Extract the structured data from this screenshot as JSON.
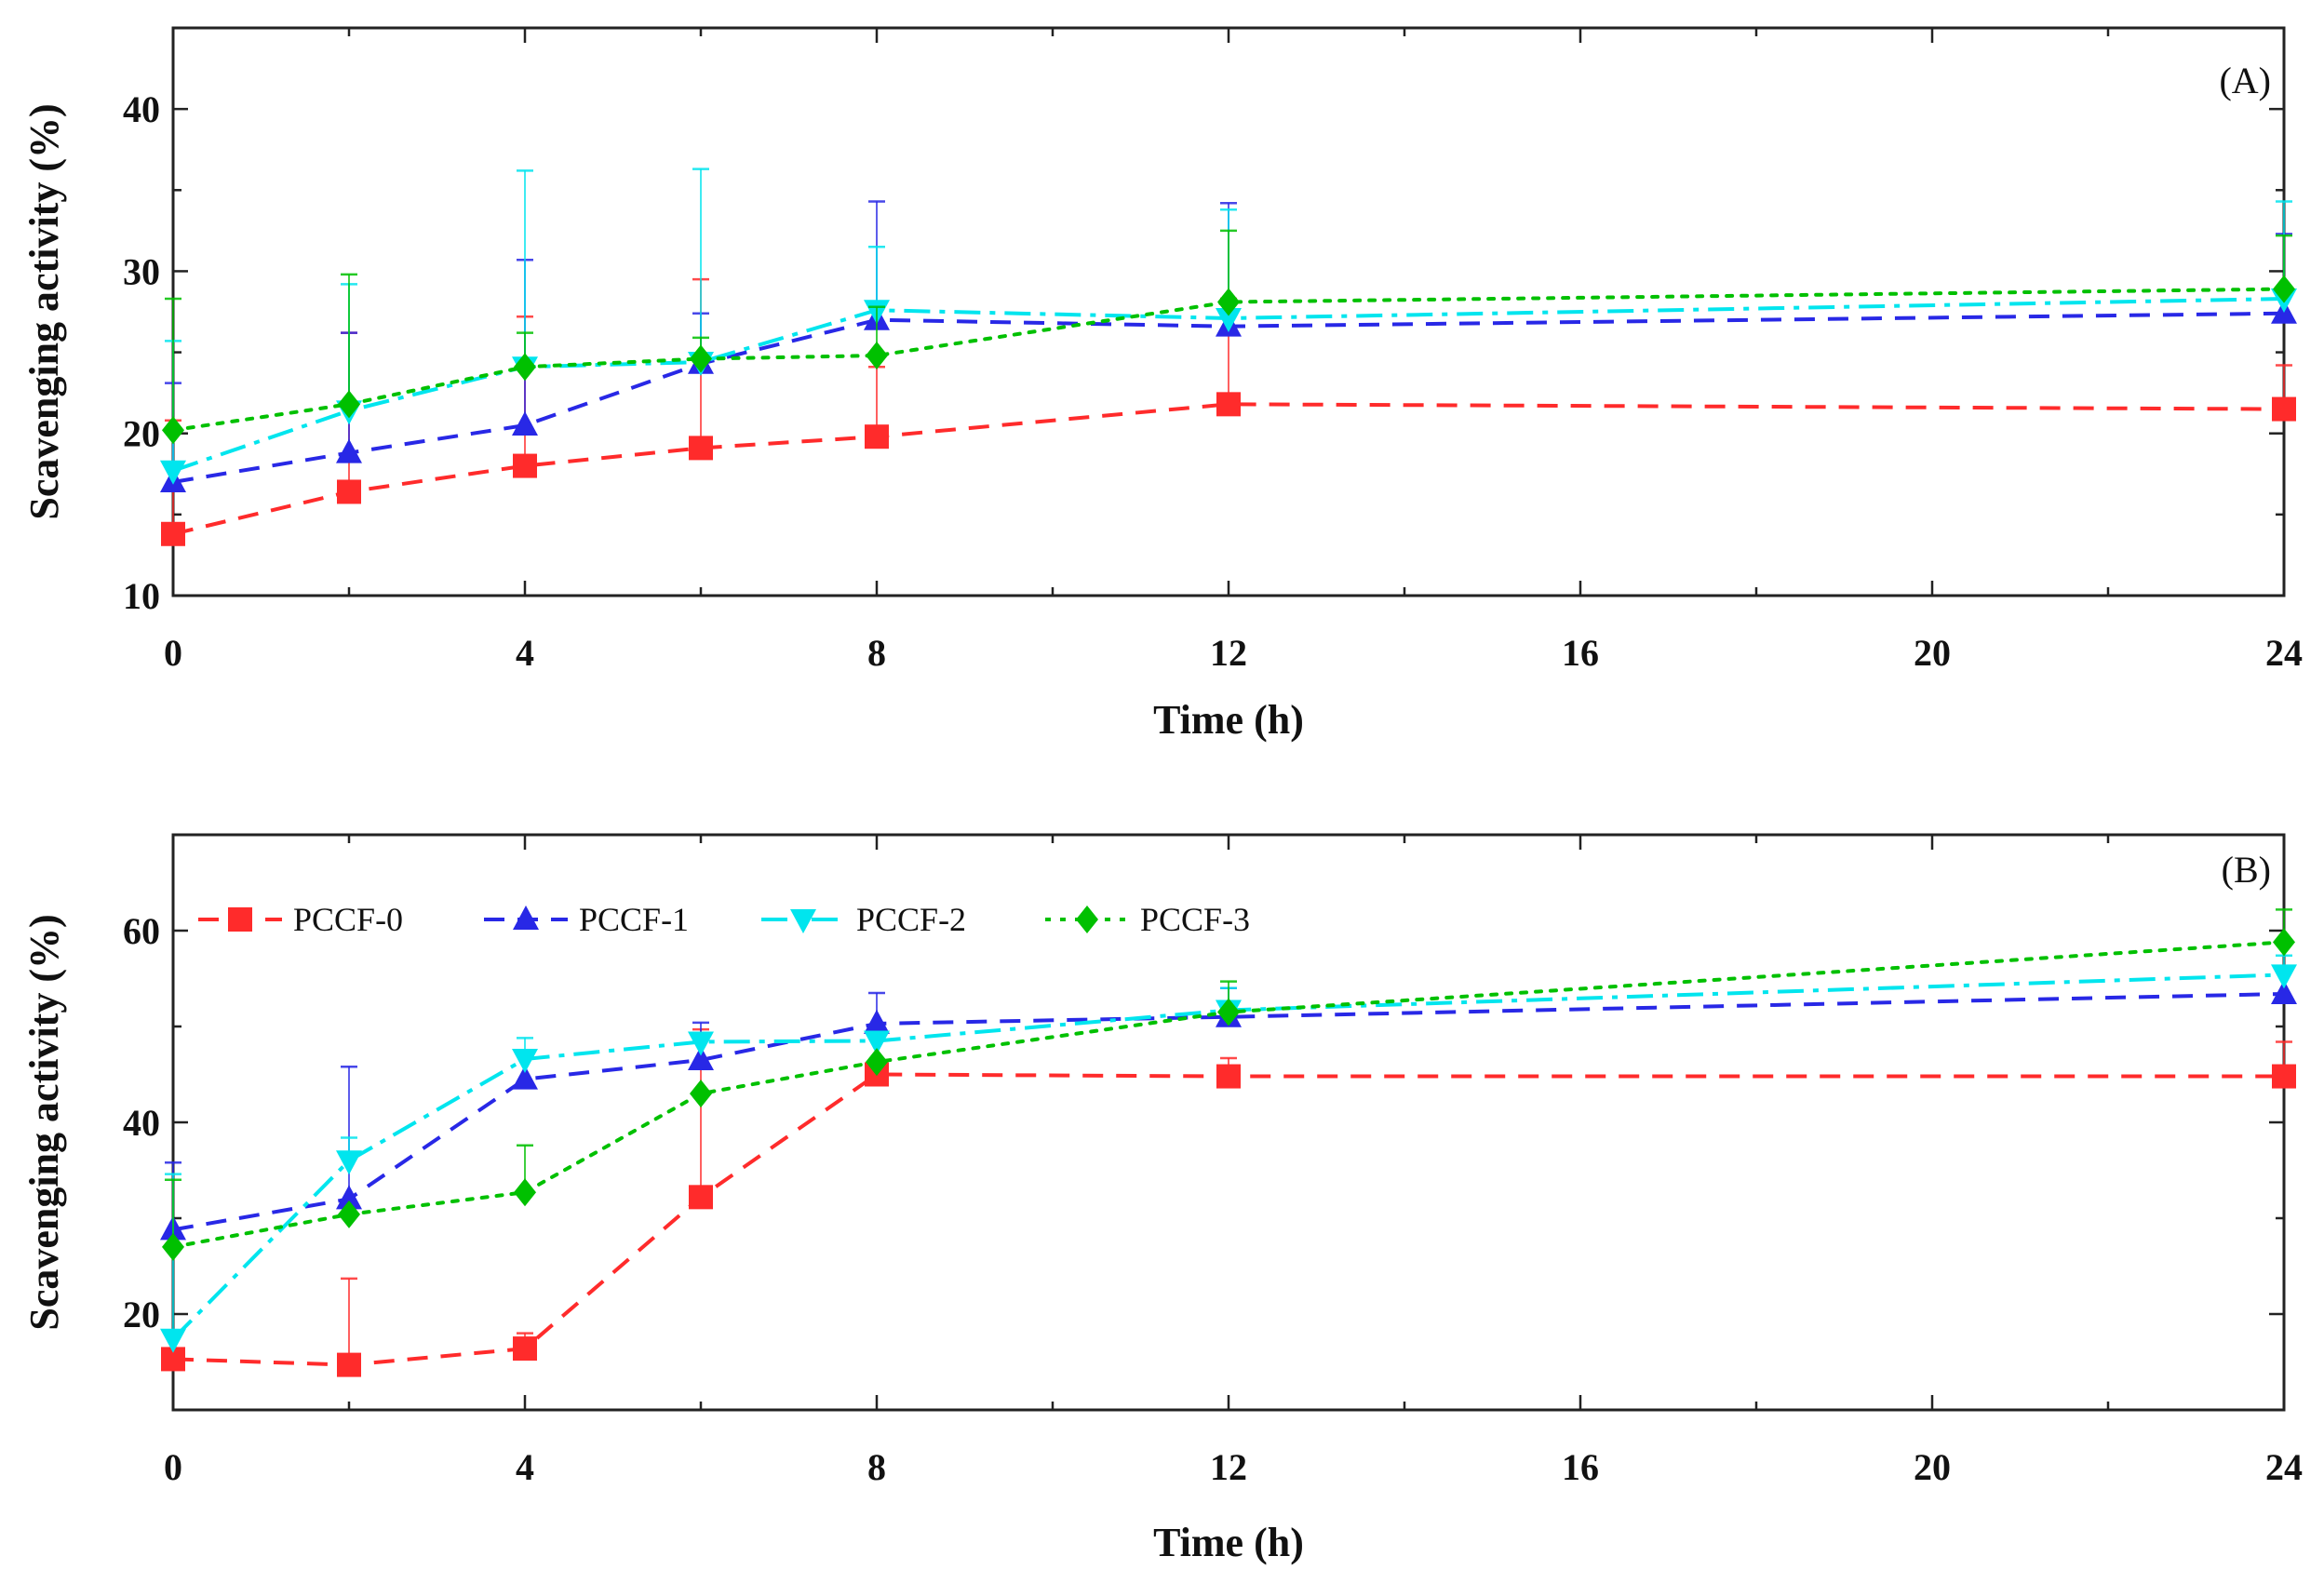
{
  "chart_data": [
    {
      "type": "line",
      "panel_label": "(A)",
      "title": "",
      "xlabel": "Time (h)",
      "ylabel": "Scavenging activity (%)",
      "x": [
        0,
        2,
        4,
        6,
        8,
        12,
        24
      ],
      "xlim": [
        0,
        24
      ],
      "ylim": [
        10,
        45
      ],
      "xticks": [
        0,
        4,
        8,
        12,
        16,
        20,
        24
      ],
      "yticks": [
        10,
        20,
        30,
        40
      ],
      "grid": false,
      "legend": "",
      "series": [
        {
          "name": "PCCF-0",
          "color": "#ff2b2b",
          "marker": "square",
          "dash": "dashed",
          "values": [
            13.8,
            16.4,
            18.0,
            19.1,
            19.8,
            21.8,
            21.5
          ],
          "errors": [
            7.0,
            9.8,
            9.2,
            10.4,
            4.3,
            6.5,
            2.7
          ]
        },
        {
          "name": "PCCF-1",
          "color": "#2828e6",
          "marker": "triangle-up",
          "dash": "dashed",
          "values": [
            17.0,
            18.8,
            20.5,
            24.3,
            27.0,
            26.6,
            27.4
          ],
          "errors": [
            6.1,
            7.4,
            10.2,
            3.1,
            7.3,
            7.6,
            4.9
          ]
        },
        {
          "name": "PCCF-2",
          "color": "#00e5ee",
          "marker": "triangle-down",
          "dash": "dashdot",
          "values": [
            17.7,
            21.4,
            24.1,
            24.4,
            27.6,
            27.1,
            28.3
          ],
          "errors": [
            8.0,
            7.8,
            12.1,
            11.9,
            3.9,
            6.7,
            6.0
          ]
        },
        {
          "name": "PCCF-3",
          "color": "#00c000",
          "marker": "diamond",
          "dash": "dotted",
          "values": [
            20.2,
            21.8,
            24.1,
            24.6,
            24.8,
            28.1,
            28.9
          ],
          "errors": [
            8.1,
            8.0,
            2.1,
            1.3,
            3.0,
            4.4,
            3.3
          ]
        }
      ]
    },
    {
      "type": "line",
      "panel_label": "(B)",
      "title": "",
      "xlabel": "Time (h)",
      "ylabel": "Scavenging activity (%)",
      "x": [
        0,
        2,
        4,
        6,
        8,
        12,
        24
      ],
      "xlim": [
        0,
        24
      ],
      "ylim": [
        10,
        70
      ],
      "xticks": [
        0,
        4,
        8,
        12,
        16,
        20,
        24
      ],
      "yticks": [
        20,
        40,
        60
      ],
      "grid": false,
      "legend": "top-left",
      "series": [
        {
          "name": "PCCF-0",
          "color": "#ff2b2b",
          "marker": "square",
          "dash": "dashed",
          "values": [
            15.3,
            14.7,
            16.4,
            32.2,
            45.0,
            44.8,
            44.8
          ],
          "errors": [
            0.0,
            9.0,
            1.6,
            17.5,
            0.0,
            1.9,
            3.6
          ]
        },
        {
          "name": "PCCF-1",
          "color": "#2828e6",
          "marker": "triangle-up",
          "dash": "dashed",
          "values": [
            28.8,
            32.0,
            44.5,
            46.5,
            50.3,
            51.0,
            53.4
          ],
          "errors": [
            7.0,
            13.8,
            0.0,
            3.9,
            3.2,
            3.0,
            0.0
          ]
        },
        {
          "name": "PCCF-2",
          "color": "#00e5ee",
          "marker": "triangle-down",
          "dash": "dashdot",
          "values": [
            17.4,
            36.0,
            46.6,
            48.4,
            48.5,
            51.7,
            55.4
          ],
          "errors": [
            17.2,
            2.4,
            2.2,
            0.0,
            0.0,
            2.3,
            2.0
          ]
        },
        {
          "name": "PCCF-3",
          "color": "#00c000",
          "marker": "diamond",
          "dash": "dotted",
          "values": [
            27.0,
            30.4,
            32.7,
            43.0,
            46.3,
            51.5,
            58.8
          ],
          "errors": [
            7.0,
            0.0,
            4.9,
            0.0,
            0.0,
            3.2,
            3.4
          ]
        }
      ]
    }
  ]
}
